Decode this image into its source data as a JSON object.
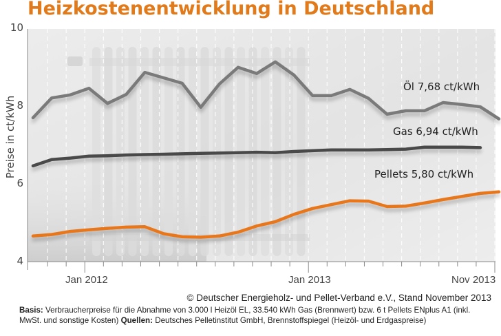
{
  "title": "Heizkostenentwicklung in Deutschland",
  "chart_data": {
    "type": "line",
    "title": "Heizkostenentwicklung in Deutschland",
    "xlabel": "",
    "ylabel": "Preise in ct/kWh",
    "ylim": [
      4,
      10
    ],
    "yticks": [
      "4",
      "6",
      "8",
      "10"
    ],
    "xlim": [
      "Okt 2011",
      "Nov 2013"
    ],
    "xticks": [
      "Jan 2012",
      "Jan 2013",
      "Nov 2013"
    ],
    "grid": "vertical dashed monthly",
    "x": [
      "Okt 2011",
      "Nov 2011",
      "Dez 2011",
      "Jan 2012",
      "Feb 2012",
      "Mrz 2012",
      "Apr 2012",
      "Mai 2012",
      "Jun 2012",
      "Jul 2012",
      "Aug 2012",
      "Sep 2012",
      "Okt 2012",
      "Nov 2012",
      "Dez 2012",
      "Jan 2013",
      "Feb 2013",
      "Mrz 2013",
      "Apr 2013",
      "Mai 2013",
      "Jun 2013",
      "Jul 2013",
      "Aug 2013",
      "Sep 2013",
      "Okt 2013",
      "Nov 2013"
    ],
    "series": [
      {
        "name": "Öl",
        "label": "Öl  7,68 ct/kWh",
        "color": "#7a7a7a",
        "values": [
          7.71,
          8.22,
          8.3,
          8.47,
          8.08,
          8.31,
          8.88,
          8.74,
          8.6,
          7.98,
          8.58,
          9.01,
          8.85,
          9.15,
          8.81,
          8.28,
          8.28,
          8.44,
          8.21,
          7.8,
          7.89,
          7.89,
          8.1,
          8.05,
          7.99,
          7.68
        ]
      },
      {
        "name": "Gas",
        "label": "Gas  6,94 ct/kWh",
        "color": "#4a4a4a",
        "values": [
          6.47,
          6.63,
          6.67,
          6.72,
          6.73,
          6.75,
          6.76,
          6.77,
          6.78,
          6.79,
          6.8,
          6.81,
          6.82,
          6.81,
          6.84,
          6.86,
          6.88,
          6.88,
          6.88,
          6.89,
          6.9,
          6.95,
          6.95,
          6.95,
          6.94,
          null
        ]
      },
      {
        "name": "Pellets",
        "label": "Pellets  5,80 ct/kWh",
        "color": "#e8771e",
        "values": [
          4.66,
          4.7,
          4.78,
          4.82,
          4.86,
          4.89,
          4.9,
          4.72,
          4.64,
          4.63,
          4.66,
          4.76,
          4.92,
          5.03,
          5.22,
          5.37,
          5.47,
          5.57,
          5.56,
          5.42,
          5.43,
          5.51,
          5.6,
          5.68,
          5.76,
          5.8
        ]
      }
    ],
    "legend": "inline labels above line ends (right)"
  },
  "copyright": "© Deutscher Energieholz- und Pellet-Verband e.V., Stand November 2013",
  "footnote": {
    "basis_label": "Basis:",
    "basis_text": " Verbraucherpreise für die Abnahme von 3.000 l Heizöl EL, 33.540 kWh Gas (Brennwert) bzw. 6 t Pellets ENplus A1 (inkl. MwSt. und sonstige Kosten) ",
    "sources_label": "Quellen:",
    "sources_text": " Deutsches Pelletinstitut GmbH, Brennstoffspiegel (Heizöl- und Erdgaspreise)"
  }
}
